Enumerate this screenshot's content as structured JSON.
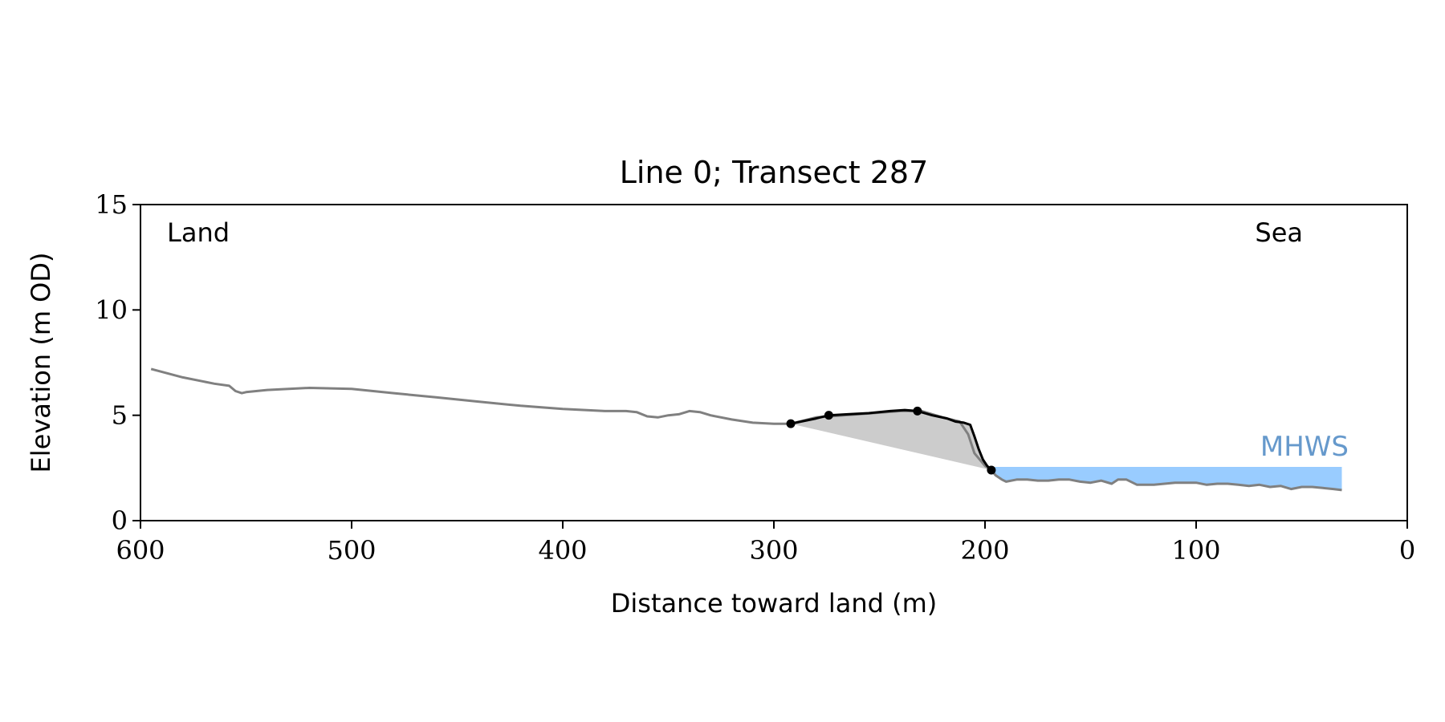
{
  "chart_data": {
    "type": "line",
    "title": "Line 0; Transect 287",
    "xlabel": "Distance toward land (m)",
    "ylabel": "Elevation (m OD)",
    "xlim": [
      600,
      0
    ],
    "ylim": [
      0,
      15
    ],
    "x_ticks": [
      600,
      500,
      400,
      300,
      200,
      100,
      0
    ],
    "y_ticks": [
      0,
      5,
      10,
      15
    ],
    "grid": false,
    "annotations": {
      "land": "Land",
      "sea": "Sea",
      "mhws": "MHWS"
    },
    "mhws": {
      "level": 2.55,
      "x_range": [
        200,
        31
      ]
    },
    "colors": {
      "profile": "#808080",
      "dune": "#000000",
      "dune_fill": "#cccccc",
      "water": "#99ccff",
      "mhws_label": "#6699cc"
    },
    "series": [
      {
        "role": "beach-profile",
        "x": [
          595,
          580,
          565,
          558,
          555,
          552,
          550,
          540,
          520,
          500,
          480,
          460,
          440,
          420,
          400,
          380,
          370,
          365,
          360,
          355,
          350,
          345,
          340,
          335,
          330,
          320,
          310,
          300,
          292,
          280,
          260,
          240,
          230,
          220,
          212,
          208,
          205,
          200,
          197,
          195,
          192,
          190,
          185,
          180,
          175,
          170,
          165,
          160,
          155,
          150,
          145,
          140,
          137,
          133,
          128,
          120,
          110,
          100,
          95,
          90,
          85,
          80,
          75,
          70,
          65,
          60,
          55,
          50,
          45,
          40,
          35,
          31
        ],
        "y": [
          7.2,
          6.8,
          6.5,
          6.4,
          6.15,
          6.05,
          6.1,
          6.2,
          6.3,
          6.25,
          6.05,
          5.85,
          5.65,
          5.45,
          5.3,
          5.2,
          5.2,
          5.15,
          4.95,
          4.9,
          5.0,
          5.05,
          5.2,
          5.15,
          5.0,
          4.8,
          4.65,
          4.6,
          4.6,
          4.9,
          5.05,
          5.2,
          5.2,
          4.9,
          4.7,
          4.1,
          3.2,
          2.6,
          2.4,
          2.15,
          1.95,
          1.85,
          1.95,
          1.95,
          1.9,
          1.9,
          1.95,
          1.95,
          1.85,
          1.8,
          1.9,
          1.75,
          1.95,
          1.95,
          1.7,
          1.7,
          1.8,
          1.8,
          1.7,
          1.75,
          1.75,
          1.7,
          1.65,
          1.7,
          1.6,
          1.65,
          1.5,
          1.6,
          1.6,
          1.55,
          1.5,
          1.45
        ]
      },
      {
        "role": "dune-crest",
        "x": [
          292,
          280,
          274,
          265,
          255,
          245,
          238,
          232,
          225,
          218,
          214,
          210,
          207,
          205,
          203,
          201,
          199,
          197
        ],
        "y": [
          4.6,
          4.85,
          5.0,
          5.05,
          5.1,
          5.2,
          5.25,
          5.2,
          5.0,
          4.85,
          4.7,
          4.65,
          4.55,
          4.0,
          3.4,
          2.9,
          2.6,
          2.4
        ]
      }
    ],
    "key_points": [
      {
        "x": 292,
        "y": 4.6
      },
      {
        "x": 274,
        "y": 5.0
      },
      {
        "x": 232,
        "y": 5.2
      },
      {
        "x": 197,
        "y": 2.4
      }
    ],
    "dune_toe_line": {
      "x": [
        292,
        197
      ],
      "y": [
        4.6,
        2.4
      ]
    }
  }
}
